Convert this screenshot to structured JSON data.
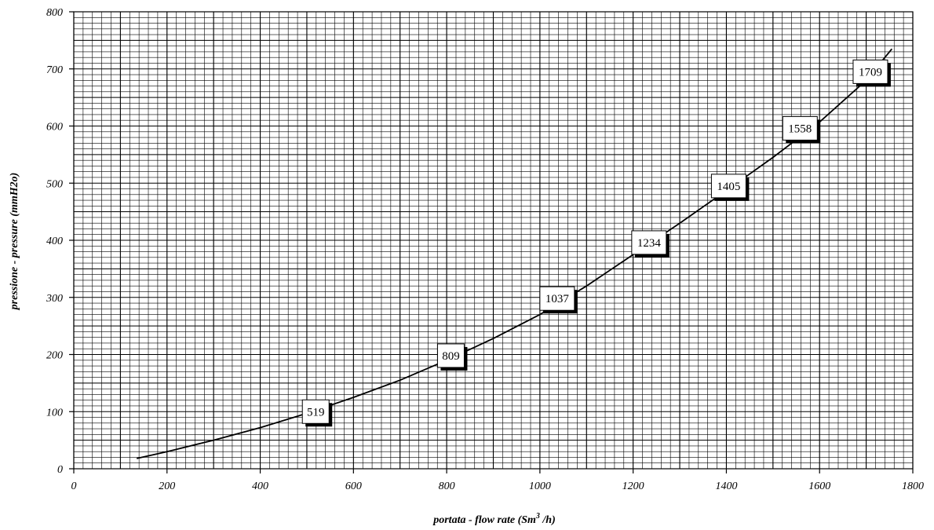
{
  "chart_data": {
    "type": "line",
    "title": "",
    "xlabel": "portata - flow rate (Sm",
    "xlabel_superscript": "3",
    "xlabel_suffix": " /h)",
    "ylabel": "pressione - pressure (mmH2o)",
    "xlim": [
      0,
      1800
    ],
    "ylim": [
      0,
      800
    ],
    "x_ticks": [
      "0",
      "200",
      "400",
      "600",
      "800",
      "1000",
      "1200",
      "1400",
      "1600",
      "1800"
    ],
    "y_ticks": [
      "0",
      "100",
      "200",
      "300",
      "400",
      "500",
      "600",
      "700",
      "800"
    ],
    "grid": true,
    "legend": "none",
    "series": [
      {
        "x": [
          135,
          200,
          300,
          400,
          500,
          600,
          700,
          800,
          900,
          1000,
          1100,
          1200,
          1300,
          1400,
          1500,
          1600,
          1700,
          1755
        ],
        "y": [
          18,
          30,
          50,
          72,
          97,
          125,
          155,
          190,
          228,
          270,
          320,
          375,
          430,
          487,
          545,
          607,
          680,
          735
        ],
        "color": "#000000"
      }
    ],
    "annotations": [
      {
        "text": "519",
        "x": 519,
        "y": 100
      },
      {
        "text": "809",
        "x": 809,
        "y": 198
      },
      {
        "text": "1037",
        "x": 1037,
        "y": 298
      },
      {
        "text": "1234",
        "x": 1234,
        "y": 396
      },
      {
        "text": "1405",
        "x": 1405,
        "y": 495
      },
      {
        "text": "1558",
        "x": 1558,
        "y": 596
      },
      {
        "text": "1709",
        "x": 1709,
        "y": 695
      }
    ]
  }
}
